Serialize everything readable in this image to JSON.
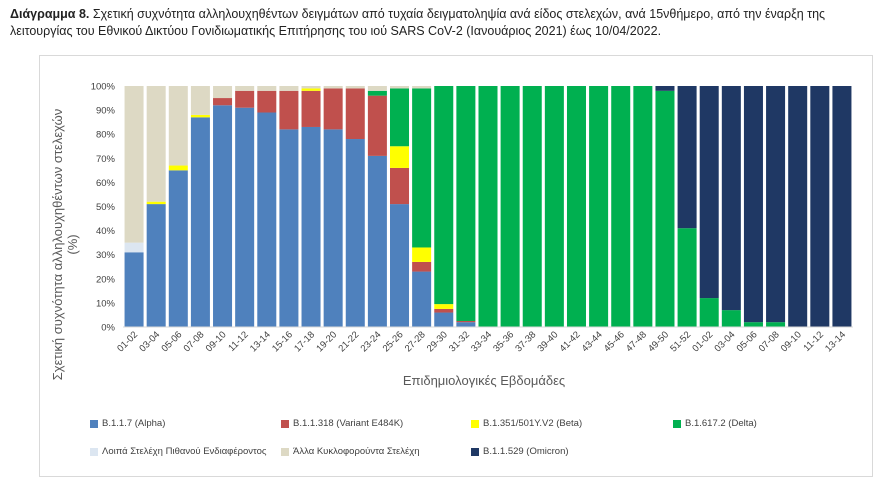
{
  "caption": {
    "label": "Διάγραμμα 8.",
    "text": " Σχετική συχνότητα αλληλουχηθέντων δειγμάτων από τυχαία δειγματοληψία ανά είδος στελεχών, ανά 15νθήμερο, από την έναρξη της λειτουργίας του Εθνικού Δικτύου Γονιδιωματικής Επιτήρησης του ιού SARS CoV-2 (Ιανουάριος 2021) έως 10/04/2022."
  },
  "chart_data": {
    "type": "bar",
    "stacked": true,
    "title": "",
    "xlabel": "Επιδημιολογικές Εβδομάδες",
    "ylabel": "Σχετική συχνότητα αλληλουχηθέντων στελεχών (%)",
    "ylim": [
      0,
      100
    ],
    "yticks": [
      "0%",
      "10%",
      "20%",
      "30%",
      "40%",
      "50%",
      "60%",
      "70%",
      "80%",
      "90%",
      "100%"
    ],
    "grid": false,
    "legend_position": "bottom",
    "categories": [
      "01-02",
      "03-04",
      "05-06",
      "07-08",
      "09-10",
      "11-12",
      "13-14",
      "15-16",
      "17-18",
      "19-20",
      "21-22",
      "23-24",
      "25-26",
      "27-28",
      "29-30",
      "31-32",
      "33-34",
      "35-36",
      "37-38",
      "39-40",
      "41-42",
      "43-44",
      "45-46",
      "47-48",
      "49-50",
      "51-52",
      "01-02",
      "03-04",
      "05-06",
      "07-08",
      "09-10",
      "11-12",
      "13-14"
    ],
    "series": [
      {
        "name": "B.1.1.7 (Alpha)",
        "color": "#4f81bd",
        "values": [
          31,
          51,
          65,
          87,
          92,
          91,
          89,
          82,
          83,
          82,
          78,
          71,
          51,
          23,
          6,
          2,
          0,
          0,
          0,
          0,
          0,
          0,
          0,
          0,
          0,
          0,
          0,
          0,
          0,
          0,
          0,
          0,
          0
        ]
      },
      {
        "name": "B.1.1.318 (Variant E484K)",
        "color": "#c0504d",
        "values": [
          0,
          0,
          0,
          0,
          3,
          7,
          9,
          16,
          15,
          17,
          21,
          25,
          15,
          4,
          1.5,
          0.5,
          0,
          0,
          0,
          0,
          0,
          0,
          0,
          0,
          0,
          0,
          0,
          0,
          0,
          0,
          0,
          0,
          0
        ]
      },
      {
        "name": "B.1.351/501Y.V2 (Beta)",
        "color": "#ffff00",
        "values": [
          0,
          1,
          2,
          1,
          0,
          0,
          0,
          0,
          1,
          0,
          0,
          0,
          9,
          6,
          2,
          0,
          0,
          0,
          0,
          0,
          0,
          0,
          0,
          0,
          0,
          0,
          0,
          0,
          0,
          0,
          0,
          0,
          0
        ]
      },
      {
        "name": "B.1.617.2 (Delta)",
        "color": "#00b050",
        "values": [
          0,
          0,
          0,
          0,
          0,
          0,
          0,
          0,
          0,
          0,
          0,
          2,
          24,
          66,
          90.5,
          97.5,
          100,
          100,
          100,
          100,
          100,
          100,
          100,
          100,
          98,
          41,
          12,
          7,
          2,
          2,
          0,
          0,
          0
        ]
      },
      {
        "name": "Λοιπά Στελέχη Πιθανού Ενδιαφέροντος",
        "color": "#dce6f1",
        "values": [
          4,
          0,
          0,
          0,
          0,
          0,
          0,
          0,
          0,
          0,
          0,
          0,
          0,
          0,
          0,
          0,
          0,
          0,
          0,
          0,
          0,
          0,
          0,
          0,
          0,
          0,
          0,
          0,
          0,
          0,
          0,
          0,
          0
        ]
      },
      {
        "name": "Άλλα Κυκλοφορούντα Στελέχη",
        "color": "#ddd9c4",
        "values": [
          65,
          48,
          33,
          12,
          5,
          2,
          2,
          2,
          1,
          1,
          1,
          2,
          1,
          1,
          0,
          0,
          0,
          0,
          0,
          0,
          0,
          0,
          0,
          0,
          0,
          0,
          0,
          0,
          0,
          0,
          0,
          0,
          0
        ]
      },
      {
        "name": "B.1.1.529 (Omicron)",
        "color": "#1f3864",
        "values": [
          0,
          0,
          0,
          0,
          0,
          0,
          0,
          0,
          0,
          0,
          0,
          0,
          0,
          0,
          0,
          0,
          0,
          0,
          0,
          0,
          0,
          0,
          0,
          0,
          2,
          59,
          88,
          93,
          98,
          98,
          100,
          100,
          100
        ]
      }
    ]
  },
  "legend_order": [
    0,
    1,
    2,
    3,
    4,
    5,
    6
  ]
}
